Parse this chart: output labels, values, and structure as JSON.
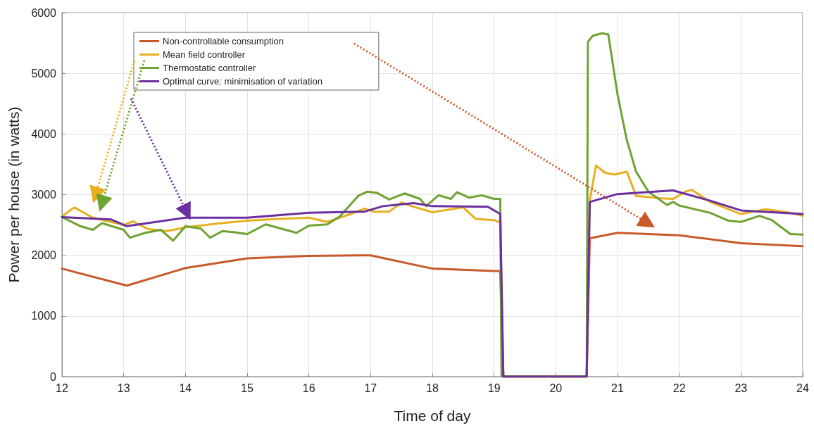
{
  "chart_data": {
    "type": "line",
    "xlabel": "Time of day",
    "ylabel": "Power per house (in watts)",
    "xlim": [
      12,
      24
    ],
    "xticks": [
      12,
      13,
      14,
      15,
      16,
      17,
      18,
      19,
      20,
      21,
      22,
      23,
      24
    ],
    "ylim": [
      0,
      6000
    ],
    "yticks": [
      0,
      1000,
      2000,
      3000,
      4000,
      5000,
      6000
    ],
    "grid": true,
    "legend": "top left",
    "marker": "none",
    "line_style": "solid",
    "series": [
      {
        "name": "Non-controllable consumption",
        "color": "#c85a2a",
        "x": [
          12,
          13.05,
          14,
          15,
          16,
          17,
          18,
          19,
          19.1,
          19.15,
          20.5,
          20.55,
          21,
          22,
          23,
          24
        ],
        "values": [
          1780,
          1500,
          1790,
          1950,
          1990,
          2000,
          1780,
          1740,
          1740,
          0,
          0,
          2280,
          2370,
          2330,
          2200,
          2150
        ]
      },
      {
        "name": "Mean field controller",
        "color": "#e8b020",
        "x": [
          12,
          12.2,
          12.5,
          13,
          13.15,
          13.4,
          13.7,
          14,
          14.5,
          15,
          15.5,
          16,
          16.3,
          16.7,
          16.9,
          17.05,
          17.3,
          17.5,
          17.7,
          18,
          18.5,
          18.7,
          19,
          19.1,
          19.15,
          20.5,
          20.55,
          20.65,
          20.8,
          20.95,
          21.15,
          21.3,
          21.7,
          21.9,
          22.1,
          22.2,
          22.5,
          23,
          23.4,
          23.8,
          24
        ],
        "values": [
          2640,
          2790,
          2620,
          2500,
          2560,
          2430,
          2400,
          2460,
          2520,
          2570,
          2600,
          2620,
          2550,
          2690,
          2770,
          2720,
          2720,
          2870,
          2800,
          2710,
          2790,
          2600,
          2580,
          2540,
          0,
          0,
          2900,
          3480,
          3360,
          3330,
          3380,
          2980,
          2940,
          2930,
          3050,
          3080,
          2880,
          2680,
          2760,
          2700,
          2650
        ]
      },
      {
        "name": "Thermostatic controller",
        "color": "#6fa232",
        "x": [
          12,
          12.3,
          12.5,
          12.65,
          13,
          13.1,
          13.35,
          13.6,
          13.8,
          14,
          14.25,
          14.4,
          14.6,
          14.8,
          15,
          15.3,
          15.8,
          16,
          16.3,
          16.5,
          16.8,
          16.95,
          17.1,
          17.3,
          17.55,
          17.8,
          17.9,
          18.1,
          18.3,
          18.4,
          18.6,
          18.8,
          19,
          19.1,
          19.12,
          20.5,
          20.52,
          20.6,
          20.75,
          20.85,
          21,
          21.15,
          21.3,
          21.5,
          21.8,
          21.9,
          22,
          22.5,
          22.8,
          23,
          23.3,
          23.5,
          23.8,
          24
        ],
        "values": [
          2630,
          2480,
          2420,
          2530,
          2420,
          2290,
          2370,
          2420,
          2240,
          2480,
          2440,
          2290,
          2400,
          2380,
          2350,
          2510,
          2370,
          2490,
          2510,
          2640,
          2980,
          3050,
          3030,
          2920,
          3020,
          2930,
          2810,
          2990,
          2930,
          3040,
          2950,
          2990,
          2930,
          2930,
          0,
          0,
          5520,
          5620,
          5660,
          5640,
          4650,
          3900,
          3380,
          3050,
          2830,
          2880,
          2820,
          2700,
          2570,
          2550,
          2650,
          2580,
          2350,
          2340
        ]
      },
      {
        "name": "Optimal curve: minimisation of variation",
        "color": "#6a2fa0",
        "x": [
          12,
          12.8,
          13.05,
          14,
          15,
          16,
          16.9,
          17.2,
          17.7,
          18,
          18.9,
          19.1,
          19.15,
          20.5,
          20.55,
          21,
          21.9,
          22.5,
          23,
          24
        ],
        "values": [
          2630,
          2590,
          2480,
          2620,
          2620,
          2700,
          2720,
          2810,
          2860,
          2810,
          2800,
          2680,
          0,
          0,
          2880,
          3010,
          3070,
          2900,
          2740,
          2680
        ]
      }
    ]
  }
}
